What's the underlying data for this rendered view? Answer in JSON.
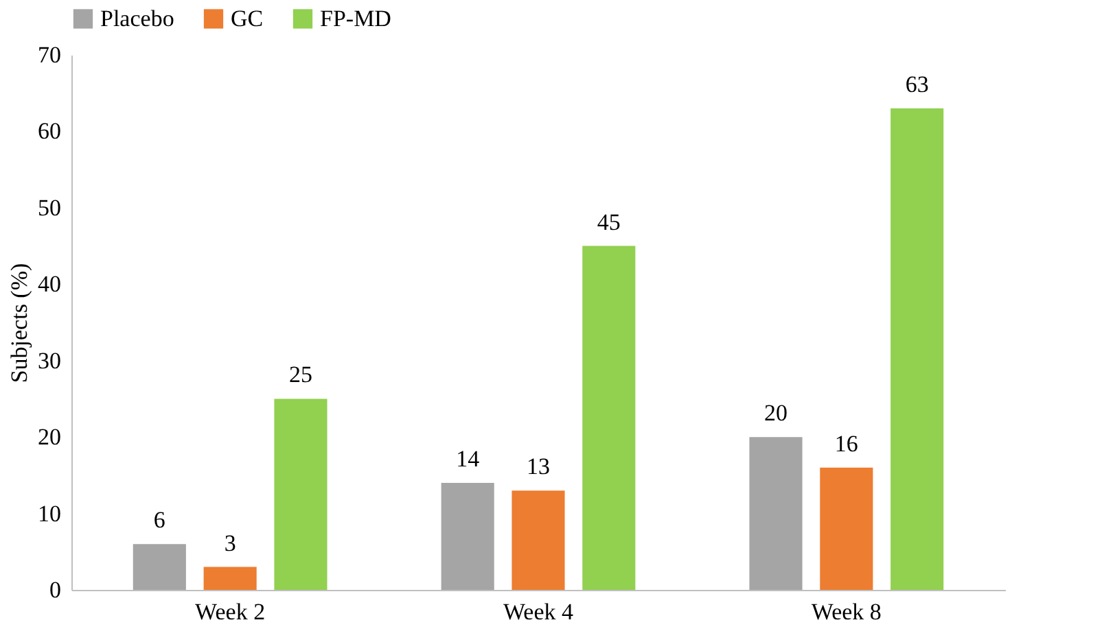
{
  "chart_data": {
    "type": "bar",
    "categories": [
      "Week 2",
      "Week 4",
      "Week 8"
    ],
    "series": [
      {
        "name": "Placebo",
        "color": "#a5a5a5",
        "values": [
          6,
          14,
          20
        ]
      },
      {
        "name": "GC",
        "color": "#ed7d31",
        "values": [
          3,
          13,
          16
        ]
      },
      {
        "name": "FP-MD",
        "color": "#92d050",
        "values": [
          25,
          45,
          63
        ]
      }
    ],
    "ylabel": "Subjects (%)",
    "ylim": [
      0,
      70
    ],
    "yticks": [
      0,
      10,
      20,
      30,
      40,
      50,
      60,
      70
    ],
    "grid": false,
    "legend": "top",
    "data_labels": true
  }
}
